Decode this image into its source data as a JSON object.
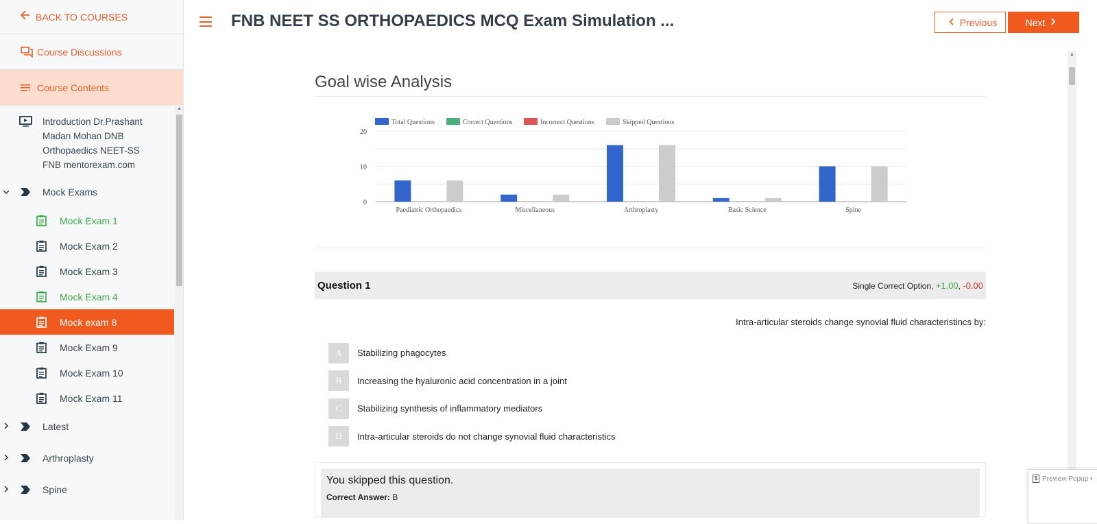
{
  "sidebar": {
    "back_label": "BACK TO COURSES",
    "discussions_label": "Course Discussions",
    "contents_label": "Course Contents",
    "intro_label": "Introduction Dr.Prashant Madan Mohan DNB Orthopaedics NEET-SS FNB mentorexam.com",
    "mock_section_label": "Mock Exams",
    "mock_items": [
      {
        "label": "Mock Exam 1",
        "state": "done"
      },
      {
        "label": "Mock Exam 2",
        "state": "normal"
      },
      {
        "label": "Mock Exam 3",
        "state": "normal"
      },
      {
        "label": "Mock Exam 4",
        "state": "done"
      },
      {
        "label": "Mock exam 8",
        "state": "current"
      },
      {
        "label": "Mock Exam 9",
        "state": "normal"
      },
      {
        "label": "Mock Exam 10",
        "state": "normal"
      },
      {
        "label": "Mock Exam 11",
        "state": "normal"
      }
    ],
    "sections": [
      "Latest",
      "Arthroplasty",
      "Spine"
    ]
  },
  "header": {
    "title": "FNB NEET SS ORTHOPAEDICS MCQ Exam Simulation ...",
    "prev_label": "Previous",
    "next_label": "Next"
  },
  "colors": {
    "accent": "#f05a1e",
    "done": "#3daa4a",
    "total": "#3366cc",
    "correct": "#4caf7d",
    "incorrect": "#e05555",
    "skipped": "#cccccc"
  },
  "analysis": {
    "title": "Goal wise Analysis"
  },
  "chart_data": {
    "type": "bar",
    "categories": [
      "Paediatric Orthopaedics",
      "Miscellaneous",
      "Arthroplasty",
      "Basic Science",
      "Spine"
    ],
    "series": [
      {
        "name": "Total Questions",
        "values": [
          6,
          2,
          16,
          1,
          10
        ]
      },
      {
        "name": "Correct Questions",
        "values": [
          0,
          0,
          0,
          0,
          0
        ]
      },
      {
        "name": "Incorrect Questions",
        "values": [
          0,
          0,
          0,
          0,
          0
        ]
      },
      {
        "name": "Skipped Questions",
        "values": [
          6,
          2,
          16,
          1,
          10
        ]
      }
    ],
    "yticks": [
      0,
      10,
      20
    ],
    "ylim": [
      0,
      20
    ],
    "legend_position": "top-left",
    "grid": true
  },
  "question": {
    "number_label": "Question 1",
    "type_label": "Single Correct Option,",
    "positive_marks": "+1.00",
    "negative_marks": "-0.00",
    "text": "Intra-articular steroids change synovial fluid characteristincs by:",
    "options": [
      {
        "letter": "A",
        "text": "Stabilizing phagocytes"
      },
      {
        "letter": "B",
        "text": "Increasing the hyaluronic acid concentration in a joint"
      },
      {
        "letter": "C",
        "text": "Stabilizing synthesis of inflammatory mediators"
      },
      {
        "letter": "D",
        "text": "Intra-articular steroids do not change synovial fluid characteristics"
      }
    ],
    "skip_message": "You skipped this question.",
    "correct_answer_label": "Correct Answer:",
    "correct_answer_value": "B"
  },
  "preview_popup": {
    "label": "Preview Popup •"
  }
}
